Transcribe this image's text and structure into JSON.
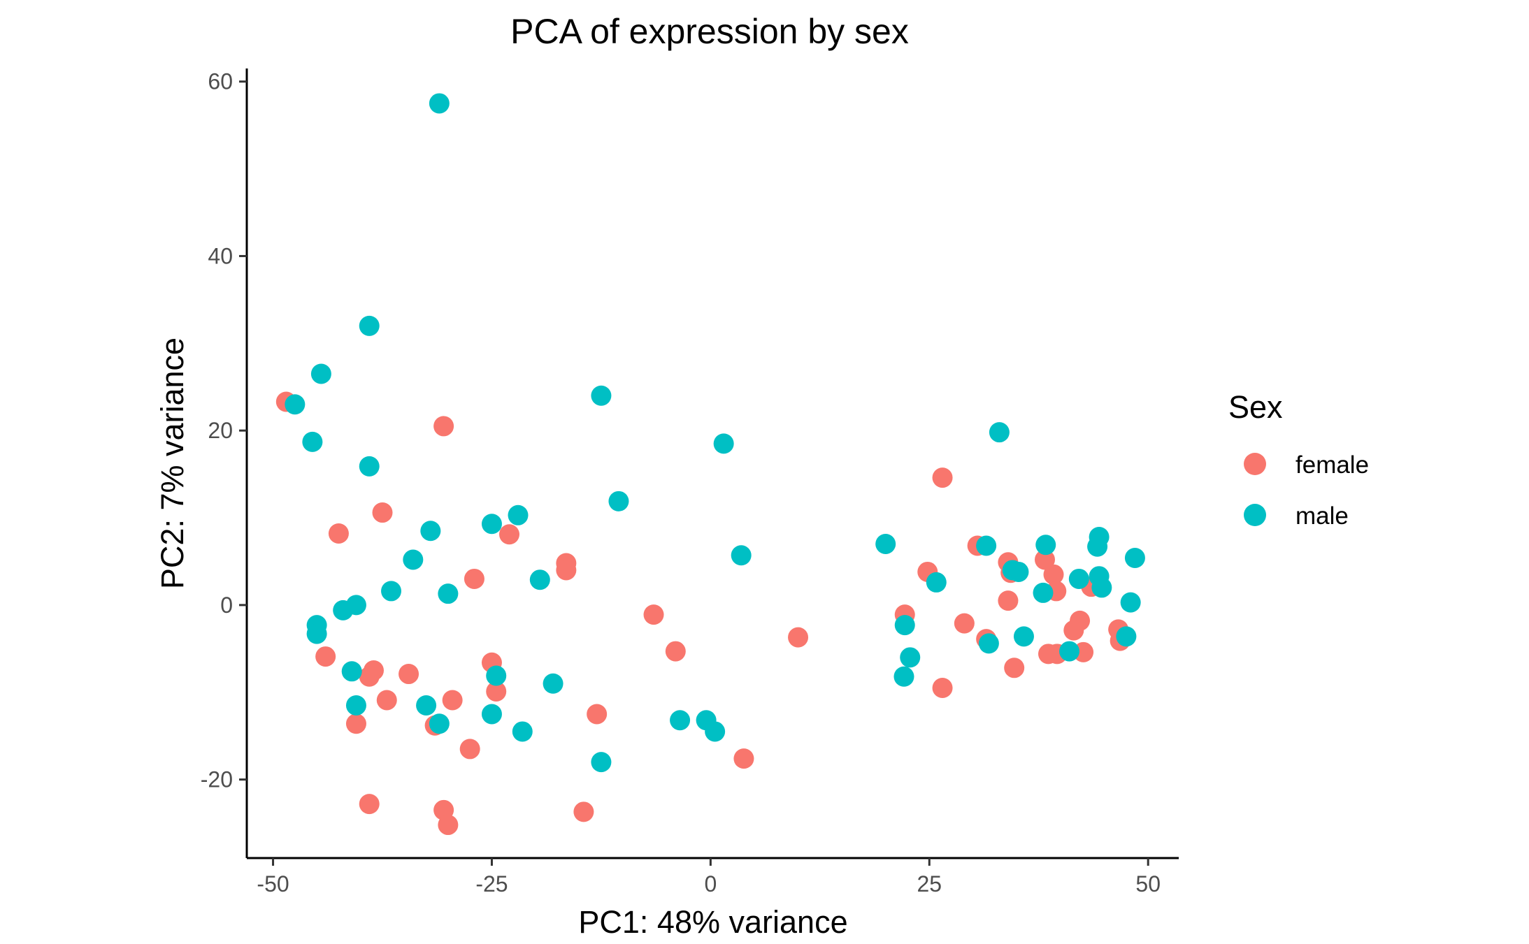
{
  "chart_data": {
    "type": "scatter",
    "title": "PCA of expression by sex",
    "xlabel": "PC1: 48% variance",
    "ylabel": "PC2: 7% variance",
    "xlim": [
      -53,
      53.5
    ],
    "ylim": [
      -29,
      61.5
    ],
    "x_ticks": [
      -50,
      -25,
      0,
      25,
      50
    ],
    "y_ticks": [
      -20,
      0,
      20,
      40,
      60
    ],
    "grid": false,
    "legend": {
      "title": "Sex",
      "placement": "right",
      "entries": [
        {
          "label": "female",
          "color": "#F8766D"
        },
        {
          "label": "male",
          "color": "#00BFC4"
        }
      ]
    },
    "series": [
      {
        "name": "female",
        "color": "#F8766D",
        "points": [
          [
            -48.5,
            23.3
          ],
          [
            -30.5,
            20.5
          ],
          [
            -37.5,
            10.6
          ],
          [
            -42.5,
            8.2
          ],
          [
            -23,
            8.1
          ],
          [
            -16.5,
            4.8
          ],
          [
            -16.5,
            4.0
          ],
          [
            -27,
            3.0
          ],
          [
            -44,
            -5.9
          ],
          [
            -38.5,
            -7.5
          ],
          [
            -39,
            -8.2
          ],
          [
            -34.5,
            -7.9
          ],
          [
            -25,
            -6.6
          ],
          [
            -24.5,
            -9.9
          ],
          [
            -37,
            -10.9
          ],
          [
            -29.5,
            -10.9
          ],
          [
            -40.5,
            -13.6
          ],
          [
            -31.5,
            -13.8
          ],
          [
            -27.5,
            -16.5
          ],
          [
            -13,
            -12.5
          ],
          [
            -6.5,
            -1.1
          ],
          [
            -4,
            -5.3
          ],
          [
            10,
            -3.7
          ],
          [
            3.8,
            -17.6
          ],
          [
            -39,
            -22.8
          ],
          [
            -30.5,
            -23.5
          ],
          [
            -30,
            -25.2
          ],
          [
            -14.5,
            -23.7
          ],
          [
            26.5,
            14.6
          ],
          [
            24.8,
            3.8
          ],
          [
            22.2,
            -1.1
          ],
          [
            29,
            -2.1
          ],
          [
            26.5,
            -9.5
          ],
          [
            30.5,
            6.8
          ],
          [
            34,
            4.9
          ],
          [
            34.3,
            3.7
          ],
          [
            34,
            0.5
          ],
          [
            31.5,
            -3.9
          ],
          [
            34.7,
            -7.2
          ],
          [
            38.2,
            5.2
          ],
          [
            39.2,
            3.5
          ],
          [
            39.5,
            1.6
          ],
          [
            43.5,
            2.1
          ],
          [
            42.2,
            -1.8
          ],
          [
            41.5,
            -2.9
          ],
          [
            38.6,
            -5.6
          ],
          [
            39.6,
            -5.6
          ],
          [
            42.6,
            -5.4
          ],
          [
            46.6,
            -2.8
          ],
          [
            46.8,
            -4.1
          ]
        ]
      },
      {
        "name": "male",
        "color": "#00BFC4",
        "points": [
          [
            -31,
            57.5
          ],
          [
            -39,
            32.0
          ],
          [
            -44.5,
            26.5
          ],
          [
            -47.5,
            23.0
          ],
          [
            -45.5,
            18.7
          ],
          [
            -39,
            15.9
          ],
          [
            -12.5,
            24.0
          ],
          [
            1.5,
            18.5
          ],
          [
            -10.5,
            11.9
          ],
          [
            -25,
            9.3
          ],
          [
            -22,
            10.3
          ],
          [
            -32,
            8.5
          ],
          [
            -34,
            5.2
          ],
          [
            -19.5,
            2.9
          ],
          [
            -36.5,
            1.6
          ],
          [
            -30,
            1.3
          ],
          [
            -40.5,
            0.0
          ],
          [
            -42,
            -0.6
          ],
          [
            -45,
            -2.3
          ],
          [
            -45,
            -3.3
          ],
          [
            -41,
            -7.6
          ],
          [
            -24.5,
            -8.1
          ],
          [
            -18,
            -9.0
          ],
          [
            -40.5,
            -11.5
          ],
          [
            -32.5,
            -11.5
          ],
          [
            -31,
            -13.6
          ],
          [
            -25,
            -12.5
          ],
          [
            -21.5,
            -14.5
          ],
          [
            -3.5,
            -13.2
          ],
          [
            -0.5,
            -13.2
          ],
          [
            0.5,
            -14.5
          ],
          [
            -12.5,
            -18.0
          ],
          [
            3.5,
            5.7
          ],
          [
            20,
            7.0
          ],
          [
            33,
            19.8
          ],
          [
            25.8,
            2.6
          ],
          [
            22.2,
            -2.3
          ],
          [
            22.8,
            -6.0
          ],
          [
            22.1,
            -8.2
          ],
          [
            31.5,
            6.8
          ],
          [
            34.5,
            4.0
          ],
          [
            35.2,
            3.8
          ],
          [
            38.3,
            6.9
          ],
          [
            38,
            1.4
          ],
          [
            31.8,
            -4.4
          ],
          [
            35.8,
            -3.6
          ],
          [
            41,
            -5.3
          ],
          [
            42.1,
            3.0
          ],
          [
            44.2,
            6.7
          ],
          [
            44.4,
            7.8
          ],
          [
            44.4,
            3.3
          ],
          [
            44.7,
            2.0
          ],
          [
            48.5,
            5.4
          ],
          [
            48,
            0.3
          ],
          [
            47.5,
            -3.6
          ]
        ]
      }
    ]
  }
}
